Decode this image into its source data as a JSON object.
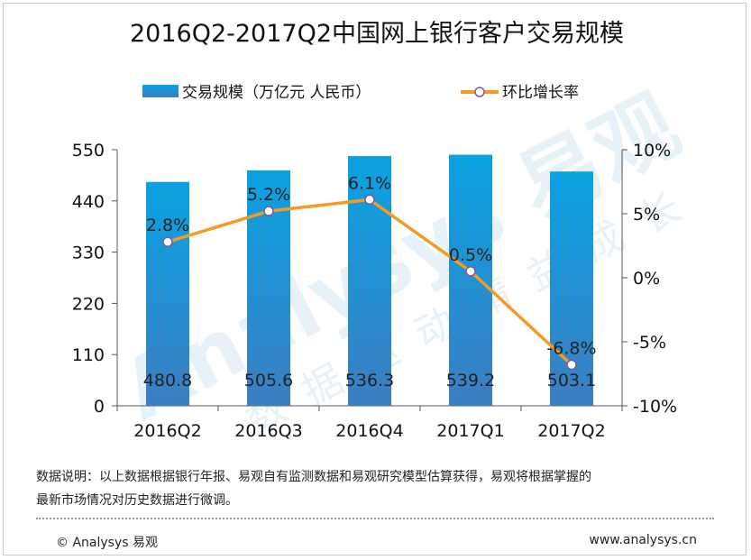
{
  "chart_data": {
    "type": "bar+line",
    "title": "2016Q2-2017Q2中国网上银行客户交易规模",
    "categories": [
      "2016Q2",
      "2016Q3",
      "2016Q4",
      "2017Q1",
      "2017Q2"
    ],
    "series": [
      {
        "name": "交易规模（万亿元 人民币）",
        "type": "bar",
        "axis": "left",
        "values": [
          480.8,
          505.6,
          536.3,
          539.2,
          503.1
        ],
        "labels": [
          "480.8",
          "505.6",
          "536.3",
          "539.2",
          "503.1"
        ]
      },
      {
        "name": "环比增长率",
        "type": "line",
        "axis": "right",
        "values": [
          2.8,
          5.2,
          6.1,
          0.5,
          -6.8
        ],
        "labels": [
          "2.8%",
          "5.2%",
          "6.1%",
          "0.5%",
          "-6.8%"
        ]
      }
    ],
    "y_left": {
      "min": 0,
      "max": 550,
      "ticks": [
        0,
        110,
        220,
        330,
        440,
        550
      ]
    },
    "y_right": {
      "min": -10,
      "max": 10,
      "ticks": [
        "-10%",
        "-5%",
        "0%",
        "5%",
        "10%"
      ],
      "tick_values": [
        -10,
        -5,
        0,
        5,
        10
      ]
    },
    "legend_position": "top",
    "grid": false,
    "colors": {
      "bar": "#2b96d4",
      "bar_bottom": "#3b7fc2",
      "line": "#f59a23",
      "marker_fill": "#ffffff",
      "marker_stroke": "#7a5a9c"
    }
  },
  "watermark": {
    "brand": "Analysys 易观",
    "slogan": "数据驱动精益成长"
  },
  "note": {
    "line1": "数据说明：以上数据根据银行年报、易观自有监测数据和易观研究模型估算获得，易观将根据掌握的",
    "line2": "最新市场情况对历史数据进行微调。"
  },
  "footer": {
    "copyright": "© Analysys 易观",
    "url": "www.analysys.cn"
  }
}
